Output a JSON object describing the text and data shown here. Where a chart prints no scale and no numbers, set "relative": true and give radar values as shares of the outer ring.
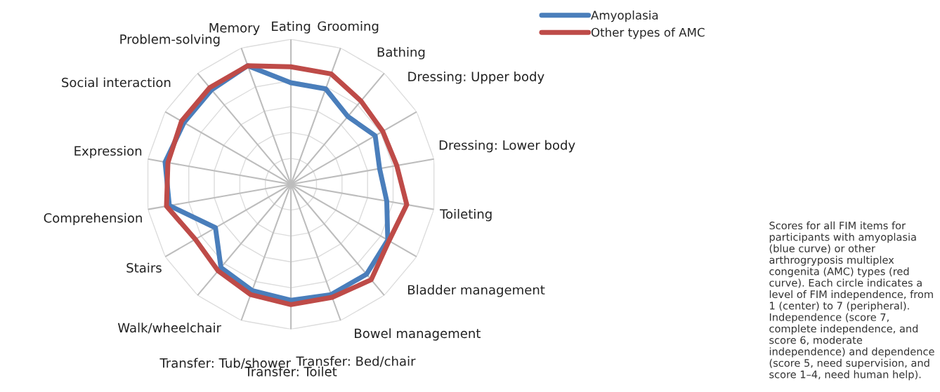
{
  "chart_data": {
    "type": "radar",
    "relative": true,
    "categories": [
      "Eating",
      "Grooming",
      "Bathing",
      "Dressing: Upper body",
      "Dressing: Lower body",
      "Toileting",
      "Bladder management",
      "Bowel management",
      "Transfer: Bed/chair",
      "Transfer: Toilet",
      "Transfer: Tub/shower",
      "Walk/wheelchair",
      "Stairs",
      "Comprehension",
      "Expression",
      "Social interaction",
      "Problem-solving",
      "Memory"
    ],
    "series": [
      {
        "name": "Amyoplasia",
        "color": "#4a7ebb",
        "values": [
          0.7,
          0.7,
          0.61,
          0.67,
          0.62,
          0.67,
          0.77,
          0.81,
          0.81,
          0.8,
          0.78,
          0.75,
          0.6,
          0.85,
          0.88,
          0.85,
          0.85,
          0.87
        ]
      },
      {
        "name": "Other types of AMC",
        "color": "#be4b48",
        "values": [
          0.81,
          0.81,
          0.75,
          0.73,
          0.74,
          0.81,
          0.78,
          0.86,
          0.83,
          0.83,
          0.81,
          0.78,
          0.76,
          0.87,
          0.86,
          0.87,
          0.87,
          0.87
        ]
      }
    ],
    "legend": "top right",
    "marker": "none",
    "line_style": "solid",
    "annotations": [
      "Scores for all FIM items for participants with amyoplasia (blue curve) or other arthrogryposis multiplex congenita (AMC) types (red curve). Each circle indicates a level of FIM independence, from 1 (center) to 7 (peripheral). Independence (score 7, complete independence, and score 6, moderate independence) and dependence (score 5, need supervision, and score 1–4, need human help)."
    ]
  }
}
